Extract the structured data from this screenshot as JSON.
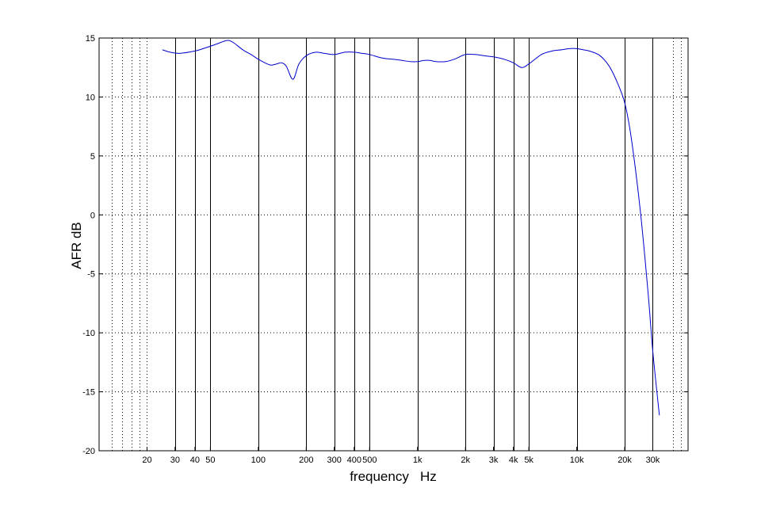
{
  "chart_data": {
    "type": "line",
    "title": "",
    "xlabel": "frequency   Hz",
    "ylabel": "AFR dB",
    "xscale": "log",
    "xlim": [
      10,
      50000
    ],
    "ylim": [
      -20,
      15
    ],
    "grid": "dotted",
    "yticks": [
      15,
      10,
      5,
      0,
      -5,
      -10,
      -15,
      -20
    ],
    "ytick_labels": [
      "15",
      "10",
      "5",
      "0",
      "-5",
      "-10",
      "-15",
      "-20"
    ],
    "xticks": [
      20,
      30,
      40,
      50,
      100,
      200,
      300,
      400,
      500,
      1000,
      2000,
      3000,
      4000,
      5000,
      10000,
      20000,
      30000
    ],
    "xtick_labels": [
      "20",
      "30",
      "40",
      "50",
      "100",
      "200",
      "300",
      "400",
      "500",
      "1k",
      "2k",
      "3k",
      "4k",
      "5k",
      "10k",
      "20k",
      "30k"
    ],
    "solid_vlines": [
      30,
      40,
      50,
      100,
      200,
      300,
      400,
      500,
      1000,
      2000,
      3000,
      4000,
      5000,
      10000,
      20000,
      30000
    ],
    "dotted_vlines": [
      12,
      14,
      16,
      18,
      20,
      40000,
      45000
    ],
    "line_color": "#0000cc",
    "series": [
      {
        "x": [
          25,
          28,
          32,
          40,
          45,
          50,
          55,
          60,
          65,
          70,
          80,
          90,
          100,
          110,
          120,
          130,
          140,
          150,
          165,
          180,
          200,
          230,
          260,
          300,
          350,
          400,
          450,
          500,
          600,
          700,
          800,
          900,
          1000,
          1100,
          1200,
          1300,
          1500,
          1700,
          2000,
          2300,
          2600,
          3000,
          3500,
          4000,
          4500,
          5000,
          6000,
          7000,
          8000,
          9000,
          10000,
          11000,
          12000,
          14000,
          16000,
          18000,
          20000,
          22000,
          25000,
          28000,
          30000,
          33000
        ],
        "y": [
          14.0,
          13.8,
          13.7,
          13.9,
          14.1,
          14.3,
          14.5,
          14.7,
          14.8,
          14.6,
          14.0,
          13.6,
          13.2,
          12.9,
          12.7,
          12.8,
          12.9,
          12.6,
          11.5,
          12.8,
          13.5,
          13.8,
          13.7,
          13.6,
          13.8,
          13.8,
          13.7,
          13.6,
          13.3,
          13.2,
          13.1,
          13.0,
          13.0,
          13.1,
          13.1,
          13.0,
          13.0,
          13.2,
          13.6,
          13.6,
          13.5,
          13.4,
          13.2,
          12.9,
          12.5,
          12.8,
          13.6,
          13.9,
          14.0,
          14.1,
          14.1,
          14.0,
          13.9,
          13.5,
          12.6,
          11.2,
          9.5,
          6.5,
          0.5,
          -6.5,
          -11.5,
          -17.0
        ]
      }
    ]
  }
}
